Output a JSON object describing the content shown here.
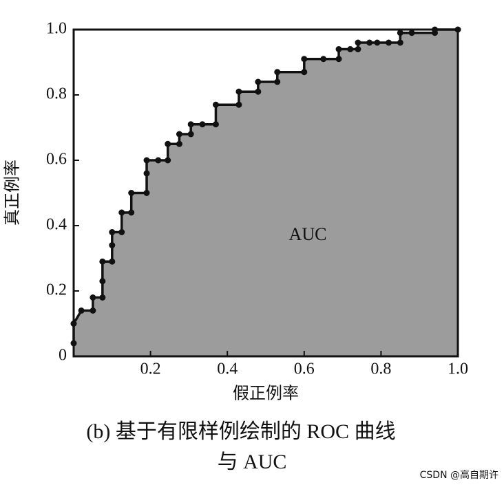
{
  "chart_data": {
    "type": "line",
    "x": [
      0,
      0,
      0.02,
      0.05,
      0.05,
      0.075,
      0.075,
      0.075,
      0.1,
      0.1,
      0.1,
      0.125,
      0.125,
      0.15,
      0.15,
      0.19,
      0.19,
      0.19,
      0.22,
      0.245,
      0.245,
      0.275,
      0.275,
      0.305,
      0.305,
      0.335,
      0.37,
      0.37,
      0.43,
      0.43,
      0.48,
      0.48,
      0.53,
      0.53,
      0.6,
      0.6,
      0.65,
      0.69,
      0.69,
      0.72,
      0.74,
      0.74,
      0.77,
      0.79,
      0.82,
      0.85,
      0.85,
      0.88,
      0.94,
      0.94,
      1.0
    ],
    "values": [
      0.04,
      0.1,
      0.14,
      0.14,
      0.18,
      0.18,
      0.23,
      0.29,
      0.29,
      0.34,
      0.38,
      0.38,
      0.44,
      0.44,
      0.5,
      0.5,
      0.56,
      0.6,
      0.6,
      0.6,
      0.65,
      0.65,
      0.68,
      0.68,
      0.71,
      0.71,
      0.71,
      0.77,
      0.77,
      0.81,
      0.81,
      0.84,
      0.84,
      0.87,
      0.87,
      0.91,
      0.91,
      0.91,
      0.94,
      0.94,
      0.94,
      0.96,
      0.96,
      0.96,
      0.96,
      0.96,
      0.99,
      0.99,
      0.99,
      1.0,
      1.0
    ],
    "color": "#111111",
    "area_color": "#9c9c9c",
    "xlim": [
      0,
      1
    ],
    "ylim": [
      0,
      1
    ],
    "xticks": [
      0.2,
      0.4,
      0.6,
      0.8,
      {
        "value": 1,
        "label": "1.0"
      }
    ],
    "yticks": [
      0,
      0.2,
      0.4,
      0.6,
      0.8,
      {
        "value": 1,
        "label": "1.0"
      }
    ],
    "xlabel": "假正例率",
    "ylabel": "真正例率",
    "annotation": "AUC",
    "caption": [
      "(b) 基于有限样例绘制的 ROC 曲线",
      "与 AUC"
    ]
  },
  "watermark": "CSDN @高自期许"
}
